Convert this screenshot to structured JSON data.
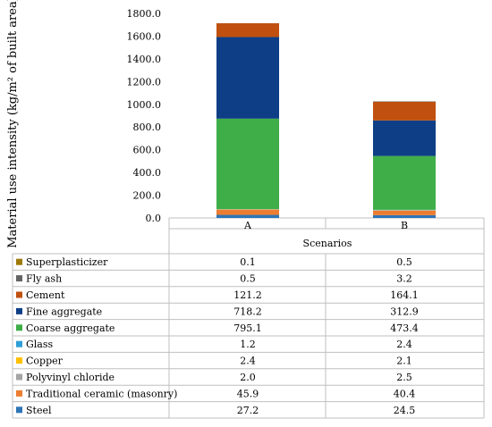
{
  "chart_data": {
    "type": "bar",
    "stacked": true,
    "ylabel": "Material use intensity (kg/m² of built area)",
    "xlabel": "Scenarios",
    "ylim": [
      0,
      1800
    ],
    "yticks": [
      "0.0",
      "200.0",
      "400.0",
      "600.0",
      "800.0",
      "1000.0",
      "1200.0",
      "1400.0",
      "1600.0",
      "1800.0"
    ],
    "categories": [
      "A",
      "B"
    ],
    "legend_placement": "data table rows",
    "series": [
      {
        "name": "Steel",
        "color": "#2e75b6",
        "values": [
          27.2,
          24.5
        ],
        "labels": [
          "27.2",
          "24.5"
        ]
      },
      {
        "name": "Traditional ceramic (masonry)",
        "color": "#ed7d31",
        "values": [
          45.9,
          40.4
        ],
        "labels": [
          "45.9",
          "40.4"
        ]
      },
      {
        "name": "Polyvinyl chloride",
        "color": "#a5a5a5",
        "values": [
          2.0,
          2.5
        ],
        "labels": [
          "2.0",
          "2.5"
        ]
      },
      {
        "name": "Copper",
        "color": "#ffc000",
        "values": [
          2.4,
          2.1
        ],
        "labels": [
          "2.4",
          "2.1"
        ]
      },
      {
        "name": "Glass",
        "color": "#2e9fd8",
        "values": [
          1.2,
          2.4
        ],
        "labels": [
          "1.2",
          "2.4"
        ]
      },
      {
        "name": "Coarse aggregate",
        "color": "#3fae49",
        "values": [
          795.1,
          473.4
        ],
        "labels": [
          "795.1",
          "473.4"
        ]
      },
      {
        "name": "Fine aggregate",
        "color": "#0e3f86",
        "values": [
          718.2,
          312.9
        ],
        "labels": [
          "718.2",
          "312.9"
        ]
      },
      {
        "name": "Cement",
        "color": "#c0500f",
        "values": [
          121.2,
          164.1
        ],
        "labels": [
          "121.2",
          "164.1"
        ]
      },
      {
        "name": "Fly ash",
        "color": "#636363",
        "values": [
          0.5,
          3.2
        ],
        "labels": [
          "0.5",
          "3.2"
        ]
      },
      {
        "name": "Superplasticizer",
        "color": "#9e7a0b",
        "values": [
          0.1,
          0.5
        ],
        "labels": [
          "0.1",
          "0.5"
        ]
      }
    ]
  }
}
